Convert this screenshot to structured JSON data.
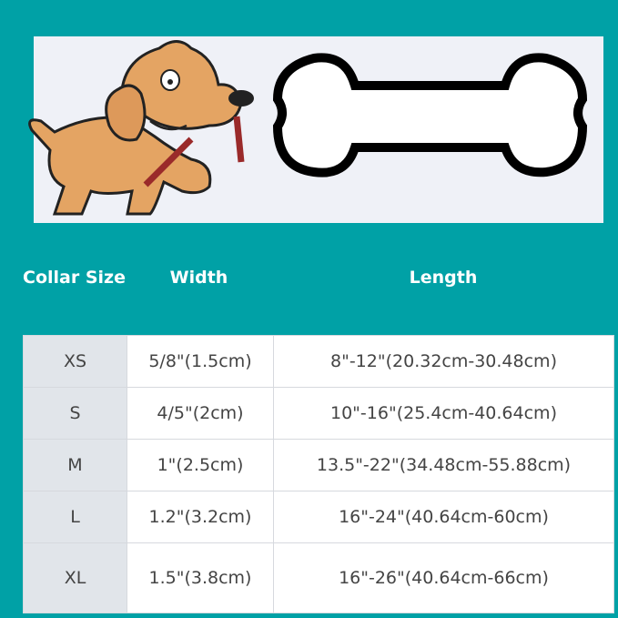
{
  "colors": {
    "background": "#00a1a6",
    "banner": "#eff1f7",
    "size_column": "#e1e5ea"
  },
  "banner": {
    "illustration": "cartoon-dog-with-leash",
    "shape": "bone-outline"
  },
  "table": {
    "headers": [
      "Collar Size",
      "Width",
      "Length"
    ],
    "rows": [
      {
        "size": "XS",
        "width": "5/8\"(1.5cm)",
        "length": "8\"-12\"(20.32cm-30.48cm)"
      },
      {
        "size": "S",
        "width": "4/5\"(2cm)",
        "length": "10\"-16\"(25.4cm-40.64cm)"
      },
      {
        "size": "M",
        "width": "1\"(2.5cm)",
        "length": "13.5\"-22\"(34.48cm-55.88cm)"
      },
      {
        "size": "L",
        "width": "1.2\"(3.2cm)",
        "length": "16\"-24\"(40.64cm-60cm)"
      },
      {
        "size": "XL",
        "width": "1.5\"(3.8cm)",
        "length": "16\"-26\"(40.64cm-66cm)"
      }
    ]
  }
}
